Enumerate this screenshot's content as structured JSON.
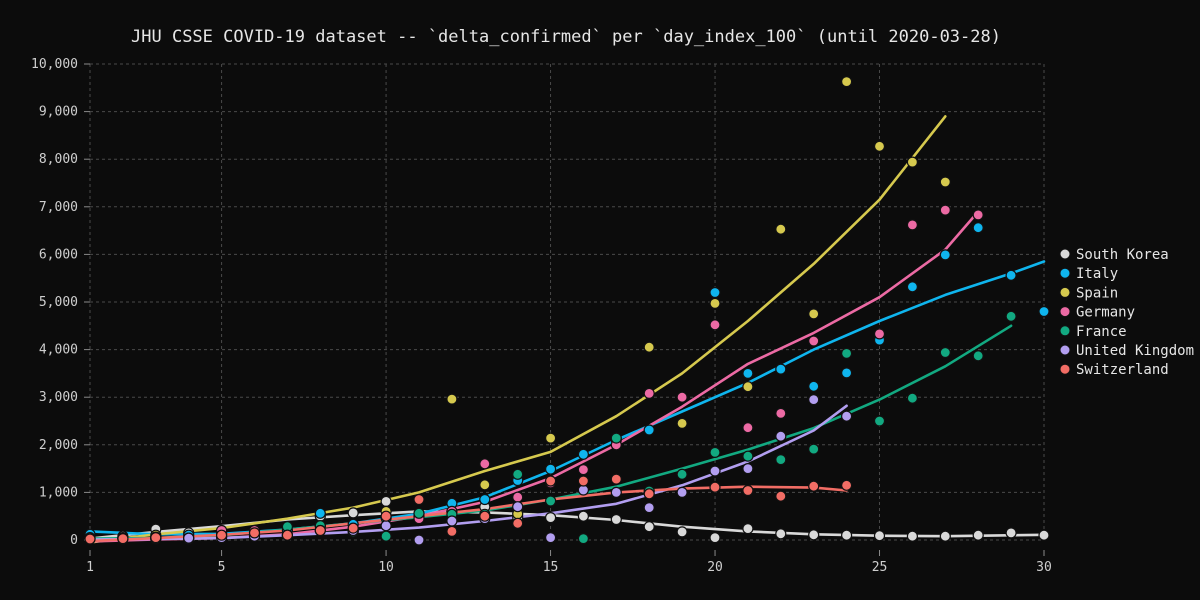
{
  "chart_data": {
    "type": "scatter",
    "title": "JHU CSSE COVID-19 dataset -- `delta_confirmed` per `day_index_100` (until 2020-03-28)",
    "xlabel": "",
    "ylabel": "",
    "xlim": [
      1,
      30
    ],
    "ylim": [
      0,
      10000
    ],
    "x_ticks": [
      1,
      5,
      10,
      15,
      20,
      25,
      30
    ],
    "y_ticks": [
      0,
      1000,
      2000,
      3000,
      4000,
      5000,
      6000,
      7000,
      8000,
      9000,
      10000
    ],
    "x_tick_labels": [
      "1",
      "5",
      "10",
      "15",
      "20",
      "25",
      "30"
    ],
    "y_tick_labels": [
      "0",
      "1,000",
      "2,000",
      "3,000",
      "4,000",
      "5,000",
      "6,000",
      "7,000",
      "8,000",
      "9,000",
      "10,000"
    ],
    "grid": true,
    "legend_position": "right",
    "series": [
      {
        "name": "South Korea",
        "color": "#d9d9d9",
        "points": [
          [
            1,
            100
          ],
          [
            2,
            80
          ],
          [
            3,
            230
          ],
          [
            4,
            150
          ],
          [
            8,
            500
          ],
          [
            9,
            570
          ],
          [
            10,
            810
          ],
          [
            11,
            550
          ],
          [
            12,
            600
          ],
          [
            13,
            700
          ],
          [
            14,
            480
          ],
          [
            15,
            470
          ],
          [
            16,
            500
          ],
          [
            17,
            430
          ],
          [
            18,
            280
          ],
          [
            19,
            170
          ],
          [
            20,
            50
          ],
          [
            21,
            240
          ],
          [
            22,
            130
          ],
          [
            23,
            110
          ],
          [
            24,
            100
          ],
          [
            25,
            90
          ],
          [
            26,
            80
          ],
          [
            27,
            80
          ],
          [
            28,
            100
          ],
          [
            29,
            150
          ],
          [
            30,
            100
          ]
        ],
        "trend": [
          [
            1,
            30
          ],
          [
            3,
            170
          ],
          [
            5,
            290
          ],
          [
            7,
            430
          ],
          [
            9,
            520
          ],
          [
            11,
            600
          ],
          [
            13,
            580
          ],
          [
            15,
            520
          ],
          [
            17,
            420
          ],
          [
            19,
            280
          ],
          [
            21,
            180
          ],
          [
            23,
            120
          ],
          [
            25,
            90
          ],
          [
            27,
            80
          ],
          [
            30,
            110
          ]
        ]
      },
      {
        "name": "Italy",
        "color": "#0fb5ee",
        "points": [
          [
            1,
            120
          ],
          [
            2,
            50
          ],
          [
            3,
            40
          ],
          [
            4,
            100
          ],
          [
            5,
            120
          ],
          [
            6,
            120
          ],
          [
            7,
            200
          ],
          [
            8,
            560
          ],
          [
            9,
            330
          ],
          [
            10,
            460
          ],
          [
            11,
            500
          ],
          [
            12,
            770
          ],
          [
            13,
            850
          ],
          [
            14,
            1250
          ],
          [
            15,
            1490
          ],
          [
            16,
            1800
          ],
          [
            17,
            2100
          ],
          [
            18,
            2310
          ],
          [
            20,
            5200
          ],
          [
            21,
            3500
          ],
          [
            22,
            3590
          ],
          [
            23,
            3230
          ],
          [
            24,
            3510
          ],
          [
            25,
            4200
          ],
          [
            26,
            5320
          ],
          [
            27,
            5990
          ],
          [
            28,
            6560
          ],
          [
            29,
            5560
          ],
          [
            30,
            4800
          ]
        ],
        "trend": [
          [
            1,
            180
          ],
          [
            3,
            120
          ],
          [
            5,
            130
          ],
          [
            7,
            220
          ],
          [
            9,
            350
          ],
          [
            11,
            550
          ],
          [
            13,
            900
          ],
          [
            15,
            1450
          ],
          [
            17,
            2100
          ],
          [
            19,
            2700
          ],
          [
            21,
            3300
          ],
          [
            23,
            4000
          ],
          [
            25,
            4600
          ],
          [
            27,
            5150
          ],
          [
            29,
            5600
          ],
          [
            30,
            5850
          ]
        ]
      },
      {
        "name": "Spain",
        "color": "#d6c94e",
        "points": [
          [
            2,
            30
          ],
          [
            3,
            100
          ],
          [
            5,
            150
          ],
          [
            8,
            300
          ],
          [
            10,
            600
          ],
          [
            12,
            2960
          ],
          [
            13,
            1160
          ],
          [
            14,
            550
          ],
          [
            15,
            2140
          ],
          [
            18,
            4050
          ],
          [
            19,
            2450
          ],
          [
            20,
            4970
          ],
          [
            21,
            3220
          ],
          [
            22,
            6530
          ],
          [
            23,
            4750
          ],
          [
            24,
            9630
          ],
          [
            25,
            8270
          ],
          [
            26,
            7940
          ],
          [
            27,
            7520
          ]
        ],
        "trend": [
          [
            1,
            -50
          ],
          [
            3,
            120
          ],
          [
            5,
            250
          ],
          [
            7,
            450
          ],
          [
            9,
            680
          ],
          [
            11,
            1000
          ],
          [
            13,
            1450
          ],
          [
            15,
            1850
          ],
          [
            17,
            2600
          ],
          [
            19,
            3500
          ],
          [
            21,
            4600
          ],
          [
            23,
            5800
          ],
          [
            25,
            7150
          ],
          [
            27,
            8900
          ]
        ]
      },
      {
        "name": "Germany",
        "color": "#ec6aa4",
        "points": [
          [
            1,
            30
          ],
          [
            3,
            20
          ],
          [
            4,
            40
          ],
          [
            5,
            200
          ],
          [
            6,
            200
          ],
          [
            7,
            100
          ],
          [
            8,
            300
          ],
          [
            9,
            200
          ],
          [
            10,
            300
          ],
          [
            11,
            450
          ],
          [
            12,
            600
          ],
          [
            13,
            1600
          ],
          [
            14,
            900
          ],
          [
            15,
            1200
          ],
          [
            16,
            1480
          ],
          [
            17,
            2000
          ],
          [
            18,
            3080
          ],
          [
            19,
            3000
          ],
          [
            20,
            4520
          ],
          [
            21,
            2360
          ],
          [
            22,
            2660
          ],
          [
            23,
            4180
          ],
          [
            25,
            4330
          ],
          [
            26,
            6620
          ],
          [
            27,
            6930
          ],
          [
            28,
            6830
          ]
        ],
        "trend": [
          [
            1,
            -30
          ],
          [
            3,
            10
          ],
          [
            5,
            40
          ],
          [
            7,
            120
          ],
          [
            9,
            280
          ],
          [
            11,
            500
          ],
          [
            13,
            800
          ],
          [
            15,
            1300
          ],
          [
            17,
            2000
          ],
          [
            19,
            2800
          ],
          [
            21,
            3700
          ],
          [
            23,
            4350
          ],
          [
            25,
            5100
          ],
          [
            27,
            6100
          ],
          [
            28,
            6900
          ]
        ]
      },
      {
        "name": "France",
        "color": "#12a981",
        "points": [
          [
            1,
            50
          ],
          [
            2,
            40
          ],
          [
            3,
            60
          ],
          [
            4,
            20
          ],
          [
            5,
            80
          ],
          [
            6,
            100
          ],
          [
            7,
            280
          ],
          [
            8,
            300
          ],
          [
            9,
            170
          ],
          [
            10,
            80
          ],
          [
            11,
            560
          ],
          [
            12,
            540
          ],
          [
            13,
            540
          ],
          [
            14,
            1380
          ],
          [
            15,
            820
          ],
          [
            16,
            30
          ],
          [
            17,
            2140
          ],
          [
            18,
            1030
          ],
          [
            19,
            1380
          ],
          [
            20,
            1840
          ],
          [
            21,
            1760
          ],
          [
            22,
            1690
          ],
          [
            23,
            1910
          ],
          [
            24,
            3920
          ],
          [
            25,
            2500
          ],
          [
            26,
            2980
          ],
          [
            27,
            3940
          ],
          [
            28,
            3870
          ],
          [
            29,
            4700
          ]
        ],
        "trend": [
          [
            1,
            30
          ],
          [
            3,
            40
          ],
          [
            5,
            100
          ],
          [
            7,
            220
          ],
          [
            9,
            350
          ],
          [
            11,
            480
          ],
          [
            13,
            620
          ],
          [
            15,
            850
          ],
          [
            17,
            1120
          ],
          [
            19,
            1500
          ],
          [
            21,
            1900
          ],
          [
            23,
            2350
          ],
          [
            25,
            2950
          ],
          [
            27,
            3650
          ],
          [
            29,
            4500
          ]
        ]
      },
      {
        "name": "United Kingdom",
        "color": "#b29ef0",
        "points": [
          [
            1,
            20
          ],
          [
            2,
            20
          ],
          [
            3,
            30
          ],
          [
            4,
            40
          ],
          [
            5,
            50
          ],
          [
            6,
            80
          ],
          [
            7,
            100
          ],
          [
            8,
            200
          ],
          [
            9,
            200
          ],
          [
            10,
            300
          ],
          [
            11,
            0
          ],
          [
            12,
            400
          ],
          [
            13,
            450
          ],
          [
            14,
            700
          ],
          [
            15,
            50
          ],
          [
            16,
            1050
          ],
          [
            17,
            1000
          ],
          [
            18,
            680
          ],
          [
            19,
            1000
          ],
          [
            20,
            1450
          ],
          [
            21,
            1500
          ],
          [
            22,
            2180
          ],
          [
            23,
            2950
          ],
          [
            24,
            2600
          ]
        ],
        "trend": [
          [
            1,
            10
          ],
          [
            3,
            20
          ],
          [
            5,
            40
          ],
          [
            7,
            100
          ],
          [
            9,
            170
          ],
          [
            11,
            260
          ],
          [
            13,
            400
          ],
          [
            15,
            560
          ],
          [
            17,
            760
          ],
          [
            19,
            1150
          ],
          [
            21,
            1650
          ],
          [
            23,
            2300
          ],
          [
            24,
            2820
          ]
        ]
      },
      {
        "name": "Switzerland",
        "color": "#f26d65",
        "points": [
          [
            1,
            20
          ],
          [
            2,
            30
          ],
          [
            3,
            50
          ],
          [
            5,
            100
          ],
          [
            6,
            150
          ],
          [
            7,
            100
          ],
          [
            8,
            200
          ],
          [
            9,
            250
          ],
          [
            10,
            500
          ],
          [
            11,
            850
          ],
          [
            12,
            180
          ],
          [
            13,
            500
          ],
          [
            14,
            350
          ],
          [
            15,
            1240
          ],
          [
            16,
            1240
          ],
          [
            17,
            1280
          ],
          [
            18,
            970
          ],
          [
            20,
            1110
          ],
          [
            21,
            1040
          ],
          [
            22,
            920
          ],
          [
            23,
            1130
          ],
          [
            24,
            1150
          ]
        ],
        "trend": [
          [
            1,
            -20
          ],
          [
            3,
            40
          ],
          [
            5,
            110
          ],
          [
            7,
            200
          ],
          [
            9,
            350
          ],
          [
            11,
            500
          ],
          [
            13,
            650
          ],
          [
            15,
            850
          ],
          [
            17,
            1000
          ],
          [
            19,
            1080
          ],
          [
            21,
            1120
          ],
          [
            23,
            1100
          ],
          [
            24,
            1040
          ]
        ]
      }
    ]
  }
}
